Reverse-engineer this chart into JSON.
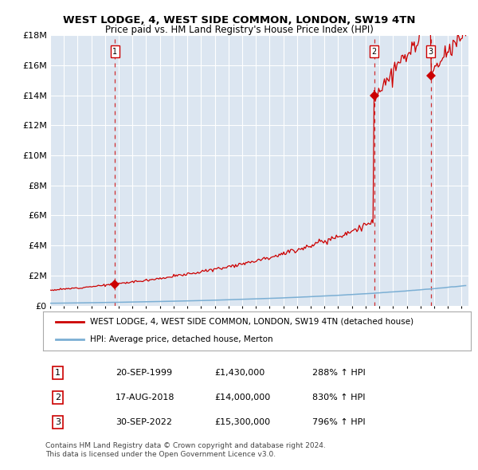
{
  "title": "WEST LODGE, 4, WEST SIDE COMMON, LONDON, SW19 4TN",
  "subtitle": "Price paid vs. HM Land Registry's House Price Index (HPI)",
  "background_color": "#dce6f1",
  "plot_bg_color": "#dce6f1",
  "grid_color": "#c8d4e3",
  "hpi_line_color": "#7bafd4",
  "price_line_color": "#cc0000",
  "ylim": [
    0,
    18000000
  ],
  "yticks": [
    0,
    2000000,
    4000000,
    6000000,
    8000000,
    10000000,
    12000000,
    14000000,
    16000000,
    18000000
  ],
  "ytick_labels": [
    "£0",
    "£2M",
    "£4M",
    "£6M",
    "£8M",
    "£10M",
    "£12M",
    "£14M",
    "£16M",
    "£18M"
  ],
  "xmin": 1995.0,
  "xmax": 2025.5,
  "sale_dates": [
    1999.72,
    2018.62,
    2022.75
  ],
  "sale_prices": [
    1430000,
    14000000,
    15300000
  ],
  "sale_labels": [
    "1",
    "2",
    "3"
  ],
  "legend_entries": [
    "WEST LODGE, 4, WEST SIDE COMMON, LONDON, SW19 4TN (detached house)",
    "HPI: Average price, detached house, Merton"
  ],
  "table_rows": [
    [
      "1",
      "20-SEP-1999",
      "£1,430,000",
      "288% ↑ HPI"
    ],
    [
      "2",
      "17-AUG-2018",
      "£14,000,000",
      "830% ↑ HPI"
    ],
    [
      "3",
      "30-SEP-2022",
      "£15,300,000",
      "796% ↑ HPI"
    ]
  ],
  "footnote1": "Contains HM Land Registry data © Crown copyright and database right 2024.",
  "footnote2": "This data is licensed under the Open Government Licence v3.0."
}
